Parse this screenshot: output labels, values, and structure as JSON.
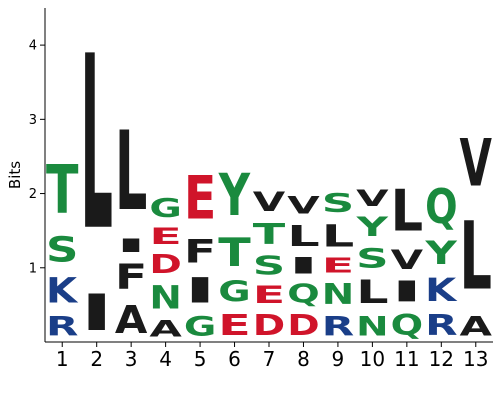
{
  "chart_data": {
    "type": "sequence-logo",
    "title": "",
    "xlabel": "",
    "ylabel": "Bits",
    "ylim": [
      0,
      4.5
    ],
    "y_ticks": [
      1,
      2,
      3,
      4
    ],
    "positions": [
      "1",
      "2",
      "3",
      "4",
      "5",
      "6",
      "7",
      "8",
      "9",
      "10",
      "11",
      "12",
      "13"
    ],
    "colors": {
      "hydrophobic": "#1a1a1a",
      "polar": "#1a8a3e",
      "acidic": "#d0142a",
      "basic": "#1a3e88"
    },
    "letters": [
      [
        {
          "letter": "R",
          "height": 0.42,
          "class": "basic"
        },
        {
          "letter": "K",
          "height": 0.55,
          "class": "basic"
        },
        {
          "letter": "S",
          "height": 0.55,
          "class": "polar"
        },
        {
          "letter": "T",
          "height": 1.06,
          "class": "polar"
        }
      ],
      [
        {
          "letter": "I",
          "height": 0.78,
          "class": "hydrophobic"
        },
        {
          "letter": "L",
          "height": 3.77,
          "class": "hydrophobic"
        }
      ],
      [
        {
          "letter": "A",
          "height": 0.6,
          "class": "hydrophobic"
        },
        {
          "letter": "F",
          "height": 0.55,
          "class": "hydrophobic"
        },
        {
          "letter": "I",
          "height": 0.29,
          "class": "hydrophobic"
        },
        {
          "letter": "L",
          "height": 1.71,
          "class": "hydrophobic"
        }
      ],
      [
        {
          "letter": "A",
          "height": 0.35,
          "class": "hydrophobic"
        },
        {
          "letter": "N",
          "height": 0.5,
          "class": "polar"
        },
        {
          "letter": "D",
          "height": 0.4,
          "class": "acidic"
        },
        {
          "letter": "E",
          "height": 0.35,
          "class": "acidic"
        },
        {
          "letter": "G",
          "height": 0.4,
          "class": "polar"
        }
      ],
      [
        {
          "letter": "G",
          "height": 0.42,
          "class": "polar"
        },
        {
          "letter": "I",
          "height": 0.55,
          "class": "hydrophobic"
        },
        {
          "letter": "F",
          "height": 0.5,
          "class": "hydrophobic"
        },
        {
          "letter": "E",
          "height": 0.94,
          "class": "acidic"
        }
      ],
      [
        {
          "letter": "E",
          "height": 0.45,
          "class": "acidic"
        },
        {
          "letter": "G",
          "height": 0.45,
          "class": "polar"
        },
        {
          "letter": "T",
          "height": 0.62,
          "class": "polar"
        },
        {
          "letter": "Y",
          "height": 0.92,
          "class": "polar"
        }
      ],
      [
        {
          "letter": "D",
          "height": 0.45,
          "class": "acidic"
        },
        {
          "letter": "E",
          "height": 0.38,
          "class": "acidic"
        },
        {
          "letter": "S",
          "height": 0.4,
          "class": "polar"
        },
        {
          "letter": "T",
          "height": 0.45,
          "class": "polar"
        },
        {
          "letter": "V",
          "height": 0.42,
          "class": "hydrophobic"
        }
      ],
      [
        {
          "letter": "D",
          "height": 0.45,
          "class": "acidic"
        },
        {
          "letter": "Q",
          "height": 0.4,
          "class": "polar"
        },
        {
          "letter": "I",
          "height": 0.35,
          "class": "hydrophobic"
        },
        {
          "letter": "L",
          "height": 0.45,
          "class": "hydrophobic"
        },
        {
          "letter": "V",
          "height": 0.38,
          "class": "hydrophobic"
        }
      ],
      [
        {
          "letter": "R",
          "height": 0.42,
          "class": "basic"
        },
        {
          "letter": "N",
          "height": 0.45,
          "class": "polar"
        },
        {
          "letter": "E",
          "height": 0.32,
          "class": "acidic"
        },
        {
          "letter": "L",
          "height": 0.48,
          "class": "hydrophobic"
        },
        {
          "letter": "S",
          "height": 0.4,
          "class": "polar"
        }
      ],
      [
        {
          "letter": "N",
          "height": 0.42,
          "class": "polar"
        },
        {
          "letter": "L",
          "height": 0.5,
          "class": "hydrophobic"
        },
        {
          "letter": "S",
          "height": 0.42,
          "class": "polar"
        },
        {
          "letter": "Y",
          "height": 0.42,
          "class": "polar"
        },
        {
          "letter": "V",
          "height": 0.35,
          "class": "hydrophobic"
        }
      ],
      [
        {
          "letter": "Q",
          "height": 0.45,
          "class": "polar"
        },
        {
          "letter": "I",
          "height": 0.45,
          "class": "hydrophobic"
        },
        {
          "letter": "V",
          "height": 0.42,
          "class": "hydrophobic"
        },
        {
          "letter": "L",
          "height": 0.9,
          "class": "hydrophobic"
        }
      ],
      [
        {
          "letter": "R",
          "height": 0.45,
          "class": "basic"
        },
        {
          "letter": "K",
          "height": 0.5,
          "class": "basic"
        },
        {
          "letter": "Y",
          "height": 0.5,
          "class": "polar"
        },
        {
          "letter": "Q",
          "height": 0.75,
          "class": "polar"
        }
      ],
      [
        {
          "letter": "A",
          "height": 0.42,
          "class": "hydrophobic"
        },
        {
          "letter": "L",
          "height": 1.48,
          "class": "hydrophobic"
        },
        {
          "letter": "V",
          "height": 1.03,
          "class": "hydrophobic"
        }
      ]
    ]
  }
}
